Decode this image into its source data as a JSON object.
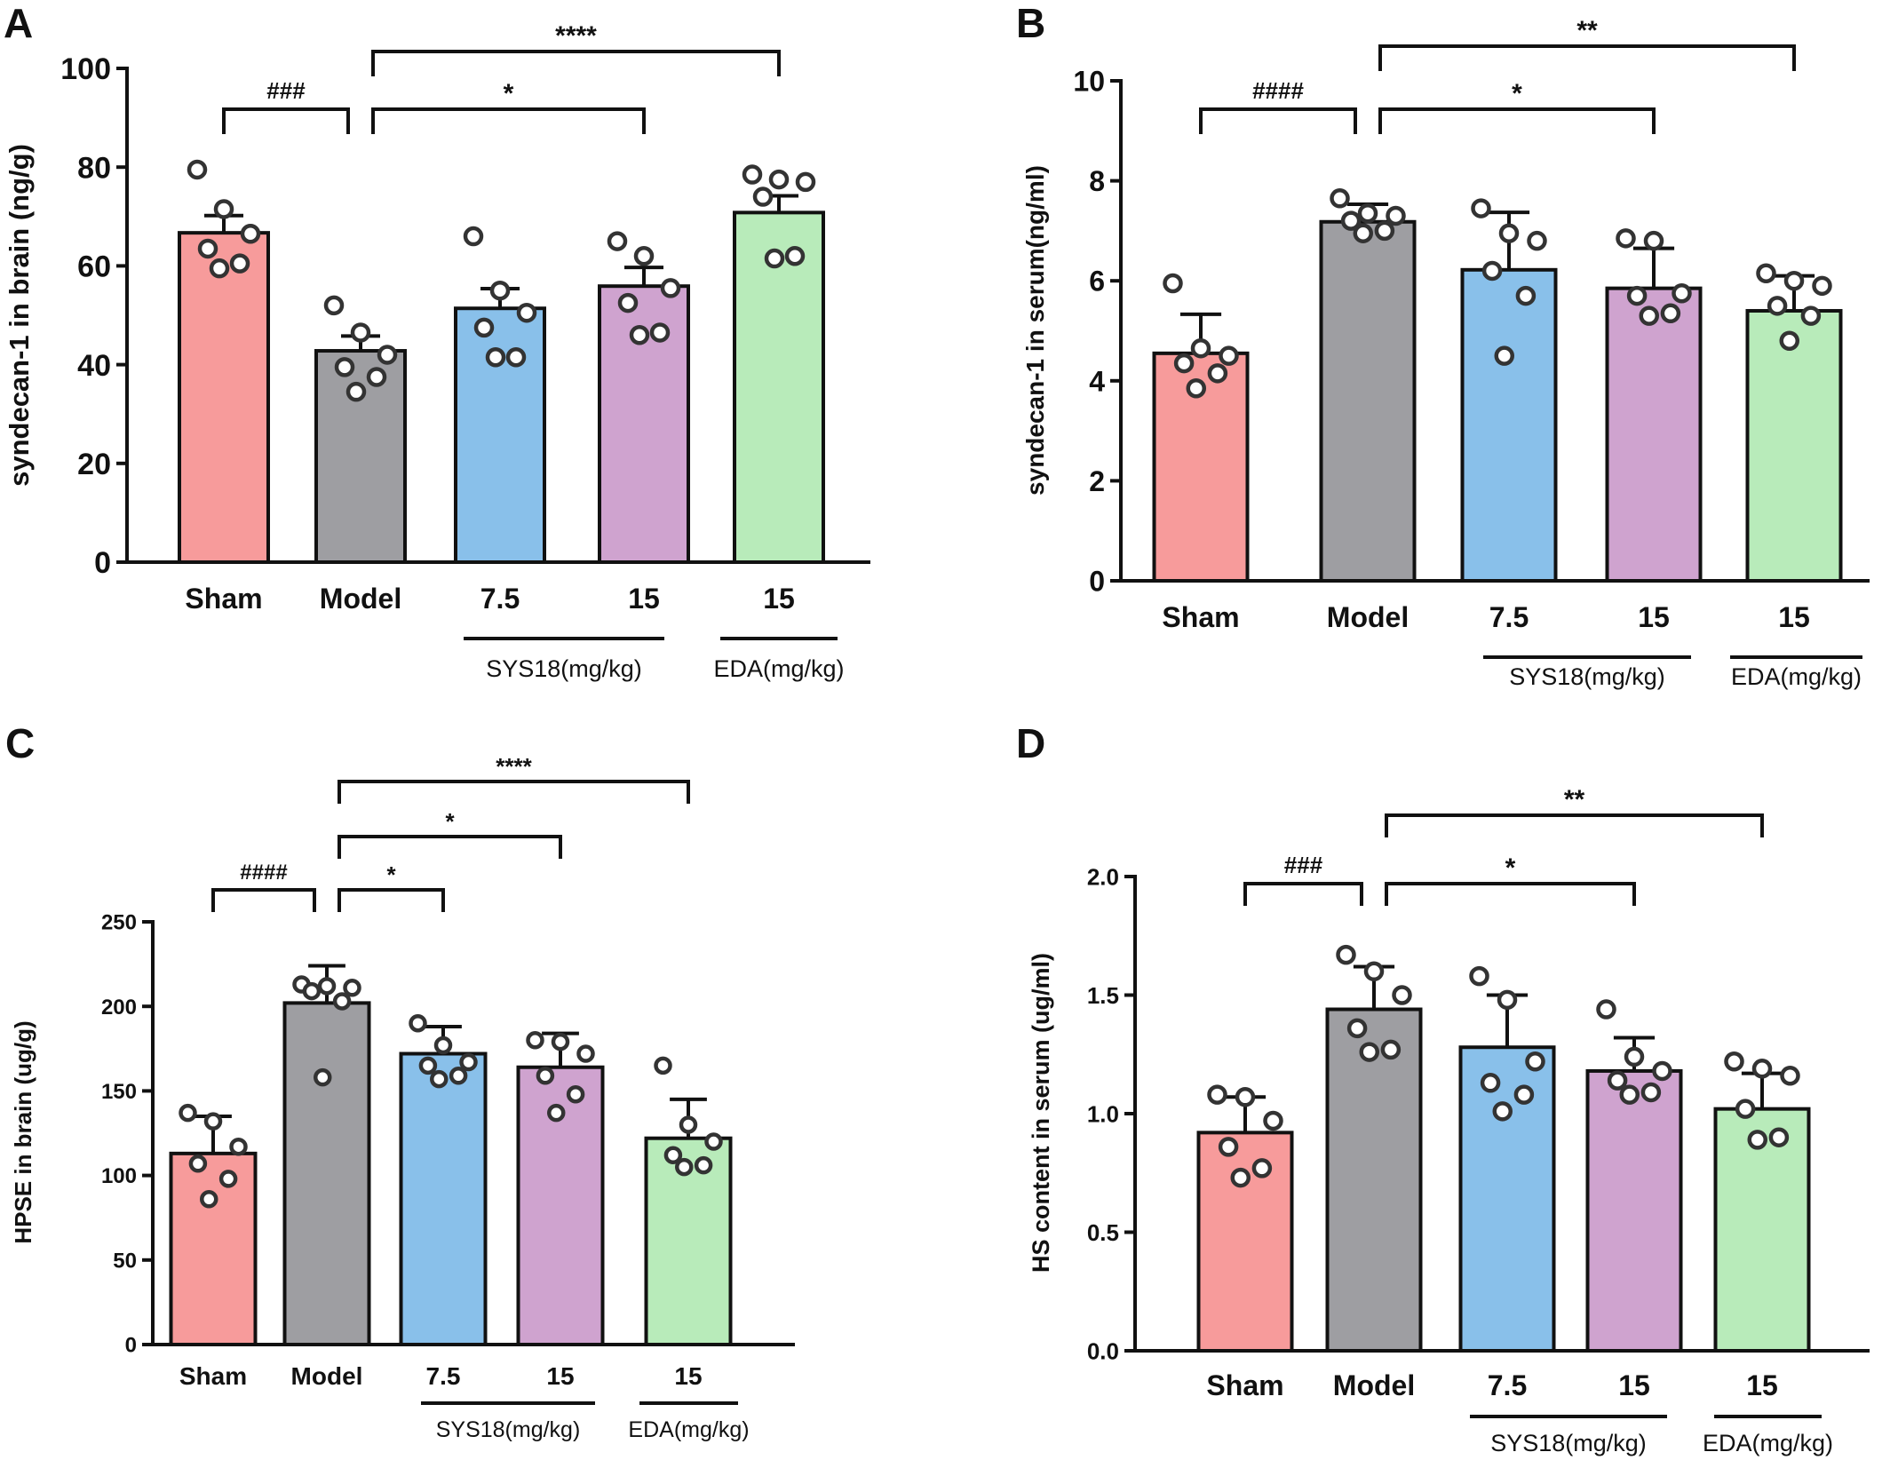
{
  "colors": {
    "sham": "#f79b9b",
    "model": "#9e9ea2",
    "sys_low": "#89c0ea",
    "sys_high": "#cfa3cf",
    "eda": "#b8ebba",
    "axis": "#111111",
    "dot_fill": "#ffffff"
  },
  "chart_data": [
    {
      "panel": "A",
      "type": "bar",
      "ylabel": "syndecan-1 in brain (ng/g)",
      "ylim": [
        0,
        100
      ],
      "yticks": [
        "0",
        "20",
        "40",
        "60",
        "80",
        "100"
      ],
      "categories": [
        "Sham",
        "Model",
        "7.5",
        "15",
        "15"
      ],
      "group_labels": [
        {
          "label": "SYS18(mg/kg)",
          "categories": [
            2,
            3
          ]
        },
        {
          "label": "EDA(mg/kg)",
          "categories": [
            4
          ]
        }
      ],
      "means": [
        66.7,
        42.8,
        51.4,
        55.9,
        70.8
      ],
      "errors": [
        3.5,
        3.0,
        4.0,
        3.8,
        3.4
      ],
      "points": [
        [
          79.5,
          71.5,
          66.5,
          63.5,
          60.5,
          59.5
        ],
        [
          52.0,
          46.5,
          42.0,
          39.5,
          37.5,
          34.5
        ],
        [
          66.0,
          55.0,
          50.5,
          47.5,
          41.5,
          41.5
        ],
        [
          65.0,
          62.0,
          55.5,
          52.5,
          46.5,
          46.0
        ],
        [
          78.5,
          77.5,
          77.0,
          74.0,
          62.0,
          61.5
        ]
      ],
      "significance": [
        {
          "from": 0,
          "to": 1,
          "label": "###",
          "level": 0
        },
        {
          "from": 1,
          "to": 3,
          "label": "*",
          "level": 0
        },
        {
          "from": 1,
          "to": 4,
          "label": "****",
          "level": 1
        }
      ]
    },
    {
      "panel": "B",
      "type": "bar",
      "ylabel": "syndecan-1 in serum(ng/ml)",
      "ylim": [
        0,
        10
      ],
      "yticks": [
        "0",
        "2",
        "4",
        "6",
        "8",
        "10"
      ],
      "categories": [
        "Sham",
        "Model",
        "7.5",
        "15",
        "15"
      ],
      "group_labels": [
        {
          "label": "SYS18(mg/kg)",
          "categories": [
            2,
            3
          ]
        },
        {
          "label": "EDA(mg/kg)",
          "categories": [
            4
          ]
        }
      ],
      "means": [
        4.55,
        7.18,
        6.22,
        5.85,
        5.4
      ],
      "errors": [
        0.78,
        0.35,
        1.15,
        0.8,
        0.7
      ],
      "points": [
        [
          5.95,
          4.65,
          4.5,
          4.35,
          4.15,
          3.85
        ],
        [
          7.65,
          7.35,
          7.3,
          7.2,
          7.0,
          6.95
        ],
        [
          7.45,
          6.95,
          6.8,
          6.2,
          5.7,
          4.5
        ],
        [
          6.85,
          6.8,
          5.75,
          5.7,
          5.35,
          5.3
        ],
        [
          6.15,
          6.0,
          5.9,
          5.5,
          5.3,
          4.8
        ]
      ],
      "significance": [
        {
          "from": 0,
          "to": 1,
          "label": "####",
          "level": 0
        },
        {
          "from": 1,
          "to": 3,
          "label": "*",
          "level": 0
        },
        {
          "from": 1,
          "to": 4,
          "label": "**",
          "level": 1
        }
      ]
    },
    {
      "panel": "C",
      "type": "bar",
      "ylabel": "HPSE in brain (ug/g)",
      "ylim": [
        0,
        250
      ],
      "yticks": [
        "0",
        "50",
        "100",
        "150",
        "200",
        "250"
      ],
      "categories": [
        "Sham",
        "Model",
        "7.5",
        "15",
        "15"
      ],
      "group_labels": [
        {
          "label": "SYS18(mg/kg)",
          "categories": [
            2,
            3
          ]
        },
        {
          "label": "EDA(mg/kg)",
          "categories": [
            4
          ]
        }
      ],
      "means": [
        113,
        202,
        172,
        164,
        122
      ],
      "errors": [
        22,
        22,
        16,
        20,
        23
      ],
      "points": [
        [
          137,
          132,
          117,
          107,
          98,
          86
        ],
        [
          213,
          212,
          211,
          209,
          203,
          158
        ],
        [
          190,
          177,
          167,
          165,
          159,
          157
        ],
        [
          180,
          179,
          172,
          159,
          148,
          137
        ],
        [
          165,
          130,
          120,
          112,
          106,
          105
        ]
      ],
      "significance": [
        {
          "from": 0,
          "to": 1,
          "label": "####",
          "level": 0
        },
        {
          "from": 1,
          "to": 2,
          "label": "*",
          "level": 0
        },
        {
          "from": 1,
          "to": 3,
          "label": "*",
          "level": 1
        },
        {
          "from": 1,
          "to": 4,
          "label": "****",
          "level": 2
        }
      ]
    },
    {
      "panel": "D",
      "type": "bar",
      "ylabel": "HS content in serum (ug/ml)",
      "ylim": [
        0,
        2.0
      ],
      "yticks": [
        "0.0",
        "0.5",
        "1.0",
        "1.5",
        "2.0"
      ],
      "categories": [
        "Sham",
        "Model",
        "7.5",
        "15",
        "15"
      ],
      "group_labels": [
        {
          "label": "SYS18(mg/kg)",
          "categories": [
            2,
            3
          ]
        },
        {
          "label": "EDA(mg/kg)",
          "categories": [
            4
          ]
        }
      ],
      "means": [
        0.92,
        1.44,
        1.28,
        1.18,
        1.02
      ],
      "errors": [
        0.15,
        0.18,
        0.22,
        0.14,
        0.15
      ],
      "points": [
        [
          1.08,
          1.07,
          0.97,
          0.86,
          0.77,
          0.73
        ],
        [
          1.67,
          1.6,
          1.5,
          1.36,
          1.27,
          1.26
        ],
        [
          1.58,
          1.48,
          1.22,
          1.13,
          1.08,
          1.01
        ],
        [
          1.44,
          1.24,
          1.18,
          1.14,
          1.09,
          1.08
        ],
        [
          1.22,
          1.19,
          1.16,
          1.02,
          0.9,
          0.89
        ]
      ],
      "significance": [
        {
          "from": 0,
          "to": 1,
          "label": "###",
          "level": 0
        },
        {
          "from": 1,
          "to": 3,
          "label": "*",
          "level": 0
        },
        {
          "from": 1,
          "to": 4,
          "label": "**",
          "level": 1
        }
      ]
    }
  ]
}
